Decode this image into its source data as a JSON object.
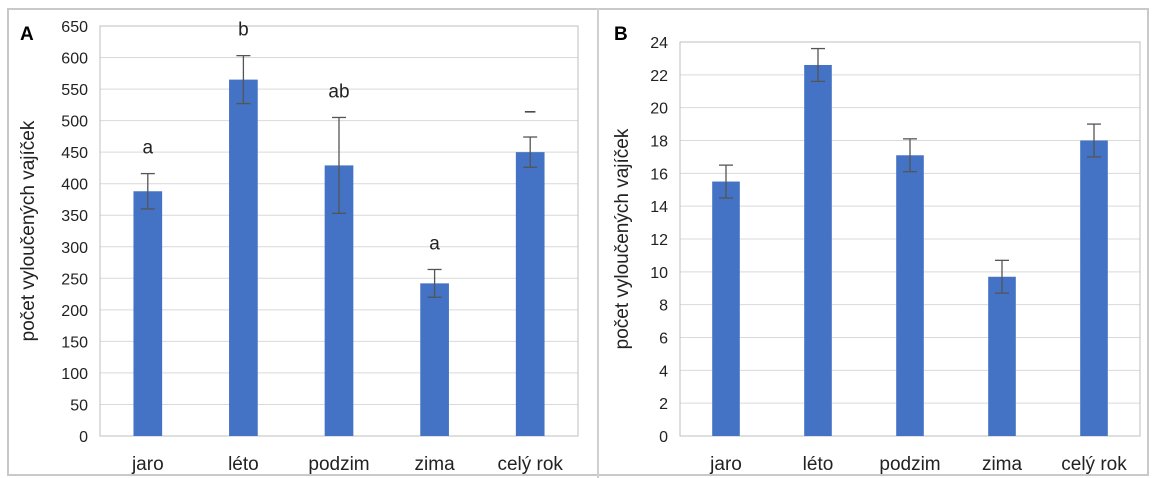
{
  "chart_data": [
    {
      "type": "bar",
      "panel": "A",
      "categories": [
        "jaro",
        "léto",
        "podzim",
        "zima",
        "celý rok"
      ],
      "values": [
        388,
        565,
        429,
        242,
        450
      ],
      "error": [
        28,
        38,
        76,
        22,
        24
      ],
      "annotations": [
        "a",
        "b",
        "ab",
        "a",
        "–"
      ],
      "ylabel": "počet vyloučených vajíček",
      "ylim": [
        0,
        650
      ],
      "yticks": [
        "0",
        "50",
        "100",
        "150",
        "200",
        "250",
        "300",
        "350",
        "400",
        "450",
        "500",
        "550",
        "600",
        "650"
      ],
      "grid": true,
      "bar_color": "#4472C4"
    },
    {
      "type": "bar",
      "panel": "B",
      "categories": [
        "jaro",
        "léto",
        "podzim",
        "zima",
        "celý rok"
      ],
      "values": [
        15.5,
        22.6,
        17.1,
        9.7,
        18.0
      ],
      "error": [
        1.0,
        1.0,
        1.0,
        1.0,
        1.0
      ],
      "ylabel": "počet vyloučených vajíček",
      "ylim": [
        0,
        24
      ],
      "yticks": [
        "0",
        "2",
        "4",
        "6",
        "8",
        "10",
        "12",
        "14",
        "16",
        "18",
        "20",
        "22",
        "24"
      ],
      "grid": true,
      "bar_color": "#4472C4"
    }
  ]
}
